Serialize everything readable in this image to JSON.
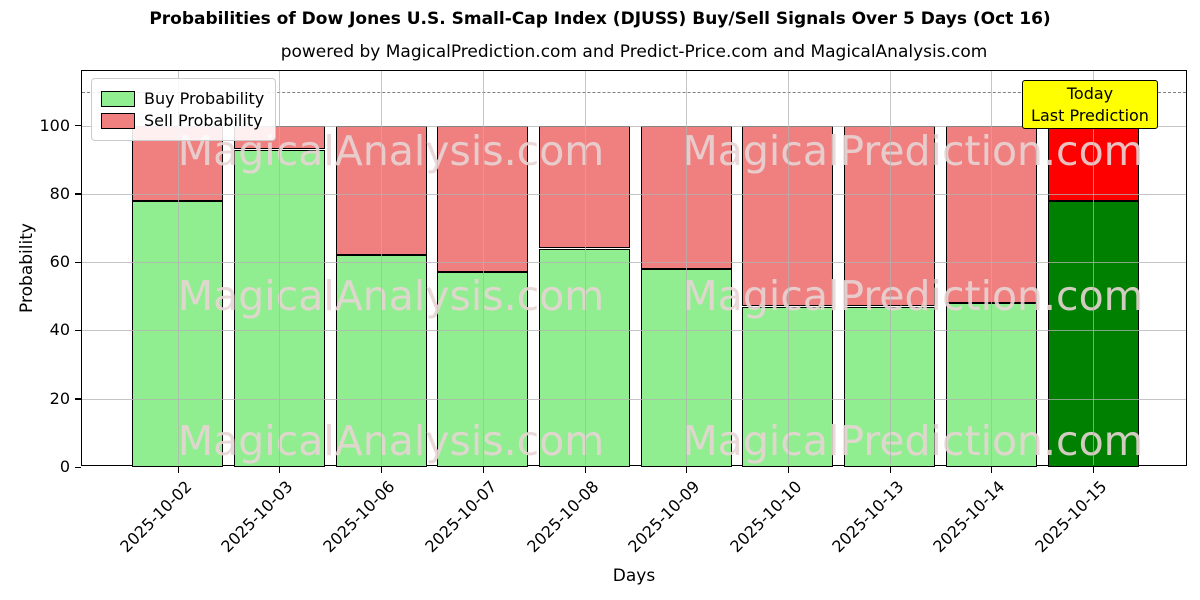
{
  "title": "Probabilities of Dow Jones U.S. Small-Cap Index (DJUSS) Buy/Sell Signals Over 5 Days (Oct 16)",
  "subtitle": "powered by MagicalPrediction.com and Predict-Price.com and MagicalAnalysis.com",
  "legend": {
    "buy_label": "Buy Probability",
    "sell_label": "Sell Probability"
  },
  "annotation": {
    "line1": "Today",
    "line2": "Last Prediction",
    "bg_color": "#FFFF00"
  },
  "axes": {
    "x_label": "Days",
    "y_label": "Probability",
    "y_ticks": [
      0,
      20,
      40,
      60,
      80,
      100
    ],
    "ylim": [
      0,
      116
    ],
    "dashed_line_y": 110,
    "grid": true
  },
  "watermarks": {
    "left_text": "MagicalAnalysis.com",
    "right_text": "MagicalPrediction.com"
  },
  "colors": {
    "buy": "#90EE90",
    "sell": "#F08080",
    "last_buy": "#008000",
    "last_sell": "#FF0000",
    "annotation_bg": "#FFFF00",
    "grid": "#b2b2b2",
    "dashed": "#7f7f7f",
    "watermark": "#E8D5D5"
  },
  "chart_data": {
    "type": "bar",
    "stacked": true,
    "title": "Probabilities of Dow Jones U.S. Small-Cap Index (DJUSS) Buy/Sell Signals Over 5 Days (Oct 16)",
    "xlabel": "Days",
    "ylabel": "Probability",
    "ylim": [
      0,
      116
    ],
    "legend_position": "upper left",
    "categories": [
      "2025-10-02",
      "2025-10-03",
      "2025-10-06",
      "2025-10-07",
      "2025-10-08",
      "2025-10-09",
      "2025-10-10",
      "2025-10-13",
      "2025-10-14",
      "2025-10-15"
    ],
    "series": [
      {
        "name": "Buy Probability",
        "values": [
          78,
          93,
          62,
          57,
          64,
          58,
          47,
          47,
          48,
          78
        ],
        "color": "#90EE90",
        "last_bar_color": "#008000"
      },
      {
        "name": "Sell Probability",
        "values": [
          22,
          7,
          38,
          43,
          36,
          42,
          53,
          53,
          52,
          22
        ],
        "color": "#F08080",
        "last_bar_color": "#FF0000"
      }
    ]
  }
}
